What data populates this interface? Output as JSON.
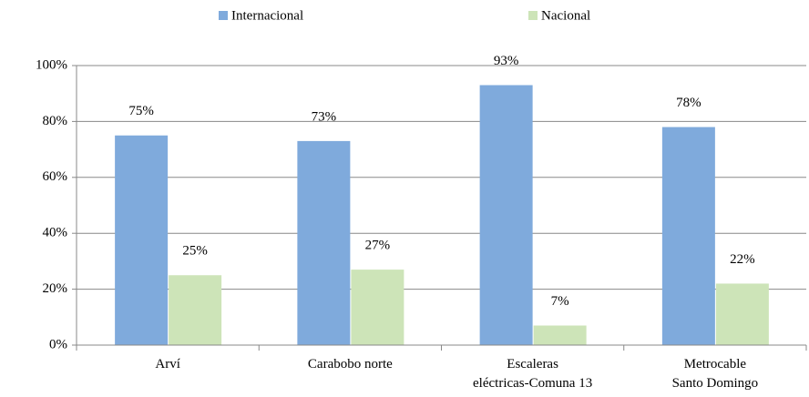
{
  "chart_data": {
    "type": "bar",
    "categories": [
      "Arví",
      "Carabobo norte",
      "Escaleras\neléctricas-Comuna 13",
      "Metrocable\nSanto Domingo"
    ],
    "series": [
      {
        "name": "Internacional",
        "color": "#7faadc",
        "values": [
          75,
          73,
          93,
          78
        ],
        "value_labels": [
          "75%",
          "73%",
          "93%",
          "78%"
        ]
      },
      {
        "name": "Nacional",
        "color": "#cde4b8",
        "values": [
          25,
          27,
          7,
          22
        ],
        "value_labels": [
          "25%",
          "27%",
          "7%",
          "22%"
        ]
      }
    ],
    "ylim": [
      0,
      100
    ],
    "yticks": [
      {
        "value": 0,
        "label": "0%"
      },
      {
        "value": 20,
        "label": "20%"
      },
      {
        "value": 40,
        "label": "40%"
      },
      {
        "value": 60,
        "label": "60%"
      },
      {
        "value": 80,
        "label": "80%"
      },
      {
        "value": 100,
        "label": "100%"
      }
    ],
    "grid": true,
    "legend": "top"
  }
}
